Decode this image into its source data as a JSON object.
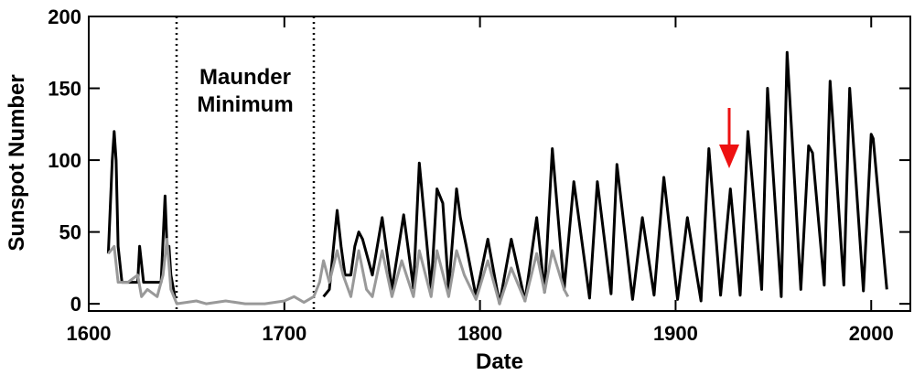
{
  "chart_data": {
    "type": "line",
    "xlabel": "Date",
    "ylabel": "Sunspot Number",
    "annotation": [
      "Maunder",
      "Minimum"
    ],
    "xlim": [
      1600,
      2020
    ],
    "xticks": [
      1600,
      1700,
      1800,
      1900,
      2000
    ],
    "ylim": [
      -5,
      200
    ],
    "yticks": [
      0,
      50,
      100,
      150,
      200
    ],
    "series": [
      {
        "color": "#000000",
        "x": [
          1610,
          1612,
          1613,
          1614,
          1615,
          1617,
          1620,
          1625,
          1626,
          1628,
          1632,
          1637,
          1639,
          1640,
          1641,
          1642,
          1644,
          1680,
          1720,
          1723,
          1727,
          1729,
          1731,
          1734,
          1736,
          1738,
          1740,
          1745,
          1750,
          1755,
          1761,
          1766,
          1769,
          1775,
          1778,
          1781,
          1784,
          1788,
          1790,
          1793,
          1798,
          1804,
          1810,
          1816,
          1823,
          1829,
          1833,
          1837,
          1843,
          1848,
          1856,
          1860,
          1867,
          1870,
          1878,
          1883,
          1889,
          1894,
          1901,
          1906,
          1913,
          1917,
          1923,
          1928,
          1933,
          1937,
          1944,
          1947,
          1954,
          1957,
          1964,
          1968,
          1970,
          1976,
          1979,
          1986,
          1989,
          1996,
          2000,
          2001,
          2008
        ],
        "values": [
          35,
          100,
          120,
          100,
          40,
          15,
          15,
          15,
          40,
          15,
          15,
          15,
          75,
          40,
          40,
          20,
          5,
          null,
          5,
          10,
          65,
          40,
          20,
          20,
          40,
          50,
          45,
          20,
          60,
          10,
          62,
          11,
          98,
          10,
          80,
          70,
          10,
          80,
          60,
          40,
          5,
          45,
          0,
          45,
          2,
          60,
          8,
          108,
          10,
          85,
          4,
          85,
          7,
          97,
          3,
          60,
          6,
          88,
          3,
          60,
          2,
          108,
          6,
          80,
          6,
          120,
          10,
          150,
          5,
          175,
          10,
          110,
          105,
          13,
          155,
          13,
          150,
          9,
          118,
          115,
          10
        ]
      },
      {
        "color": "#999999",
        "x": [
          1610,
          1613,
          1615,
          1620,
          1625,
          1627,
          1630,
          1635,
          1638,
          1640,
          1642,
          1645,
          1655,
          1660,
          1670,
          1680,
          1690,
          1700,
          1705,
          1710,
          1715,
          1718,
          1720,
          1723,
          1727,
          1730,
          1734,
          1738,
          1742,
          1745,
          1750,
          1755,
          1760,
          1766,
          1769,
          1775,
          1778,
          1784,
          1788,
          1792,
          1798,
          1804,
          1810,
          1816,
          1823,
          1829,
          1833,
          1837,
          1843,
          1845
        ],
        "values": [
          35,
          40,
          15,
          15,
          20,
          5,
          10,
          5,
          20,
          45,
          10,
          0,
          2,
          0,
          2,
          0,
          0,
          2,
          5,
          1,
          5,
          15,
          30,
          15,
          37,
          20,
          5,
          37,
          10,
          5,
          37,
          5,
          30,
          5,
          37,
          5,
          37,
          5,
          37,
          20,
          3,
          30,
          0,
          25,
          2,
          35,
          8,
          37,
          10,
          5
        ]
      }
    ]
  }
}
